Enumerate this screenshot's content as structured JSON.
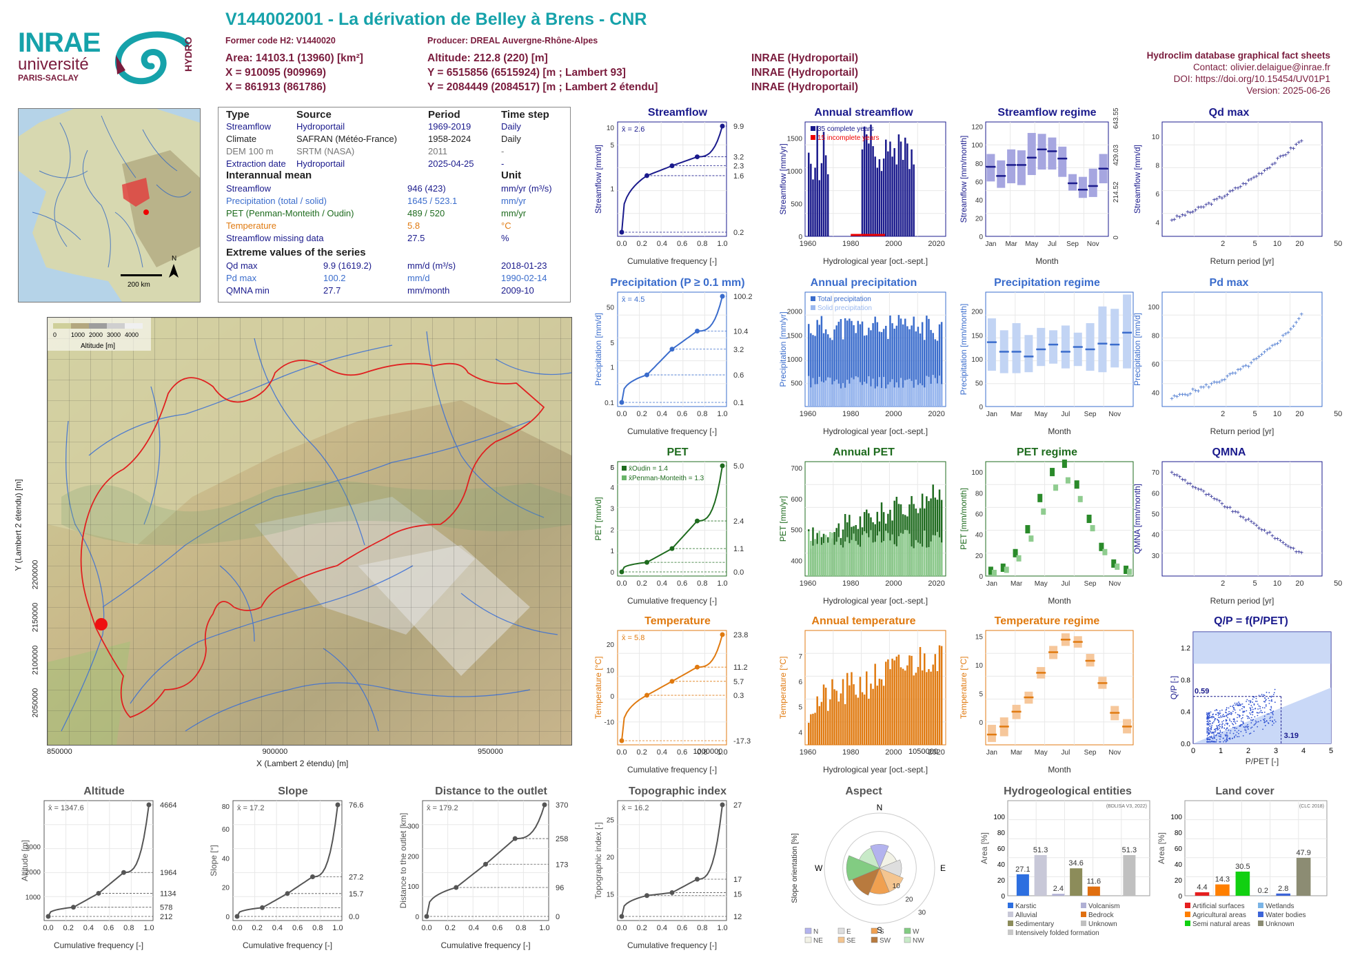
{
  "header": {
    "title": "V144002001 - La dérivation de Belley à Brens - CNR",
    "former_code": "Former code H2: V1440020",
    "producer": "Producer: DREAL Auvergne-Rhône-Alpes",
    "area": "Area: 14103.1 (13960) [km²]",
    "x93": "X = 910095 (909969)",
    "x2e": "X = 861913 (861786)",
    "altitude": "Altitude: 212.8 (220) [m]",
    "y93": "Y = 6515856 (6515924) [m ; Lambert 93]",
    "y2e": "Y = 2084449 (2084517) [m ; Lambert 2 étendu]",
    "src1": "INRAE (Hydroportail)",
    "src2": "INRAE (Hydroportail)",
    "src3": "INRAE (Hydroportail)",
    "fact_title": "Hydroclim database graphical fact sheets",
    "contact": "Contact: olivier.delaigue@inrae.fr",
    "doi": "DOI: https://doi.org/10.15454/UV01P1",
    "version": "Version: 2025-06-26",
    "logo_inrae": "INRAE",
    "logo_univ": "université",
    "logo_paris": "PARIS-SACLAY",
    "logo_hydro": "HYDRO"
  },
  "info": {
    "h_type": "Type",
    "h_source": "Source",
    "h_period": "Period",
    "h_step": "Time step",
    "rows": [
      {
        "type": "Streamflow",
        "source": "Hydroportail",
        "period": "1969-2019",
        "step": "Daily",
        "color": "#1a1a8c"
      },
      {
        "type": "Climate",
        "source": "SAFRAN (Météo-France)",
        "period": "1958-2024",
        "step": "Daily",
        "color": "#222222"
      },
      {
        "type": "DEM 100 m",
        "source": "SRTM (NASA)",
        "period": "2011",
        "step": "-",
        "color": "#777777"
      },
      {
        "type": "Extraction date",
        "source": "Hydroportail",
        "period": "2025-04-25",
        "step": "-",
        "color": "#1a1a8c"
      }
    ],
    "mean_title": "Interannual mean",
    "unit_title": "Unit",
    "means": [
      {
        "label": "Streamflow",
        "value": "946 (423)",
        "unit": "mm/yr (m³/s)",
        "color": "#1a1a8c"
      },
      {
        "label": "Precipitation (total / solid)",
        "value": "1645 / 523.1",
        "unit": "mm/yr",
        "color": "#3a6ccc"
      },
      {
        "label": "PET (Penman-Monteith / Oudin)",
        "value": "489 / 520",
        "unit": "mm/yr",
        "color": "#1e6b1e"
      },
      {
        "label": "Temperature",
        "value": "5.8",
        "unit": "°C",
        "color": "#e07a10"
      },
      {
        "label": "Streamflow missing data",
        "value": "27.5",
        "unit": "%",
        "color": "#1a1a8c"
      }
    ],
    "extreme_title": "Extreme values of the series",
    "extremes": [
      {
        "label": "Qd max",
        "value": "9.9 (1619.2)",
        "unit": "mm/d (m³/s)",
        "date": "2018-01-23",
        "color": "#1a1a8c"
      },
      {
        "label": "Pd max",
        "value": "100.2",
        "unit": "mm/d",
        "date": "1990-02-14",
        "color": "#3a6ccc"
      },
      {
        "label": "QMNA min",
        "value": "27.7",
        "unit": "mm/month",
        "date": "2009-10",
        "color": "#1a1a8c"
      }
    ]
  },
  "map": {
    "france_scale": "200 km",
    "france_north": "N",
    "legend_ticks": [
      "0",
      "1000",
      "2000",
      "3000",
      "4000"
    ],
    "legend_title": "Altitude [m]",
    "xlabel": "X (Lambert 2 étendu) [m]",
    "ylabel": "Y (Lambert 2 étendu) [m]",
    "xticks": [
      "850000",
      "900000",
      "950000",
      "1000000",
      "1050000"
    ],
    "yticks": [
      "2050000",
      "2100000",
      "2150000",
      "2200000"
    ]
  },
  "chart_data": [
    {
      "id": "streamflow_cdf",
      "type": "line",
      "title": "Streamflow",
      "xlabel": "Cumulative frequency [-]",
      "ylabel": "Streamflow [mm/d]",
      "mean_label": "x̄ = 2.6",
      "log": true,
      "ylim": [
        0.15,
        11
      ],
      "x": [
        0,
        0.25,
        0.5,
        0.75,
        1.0
      ],
      "y": [
        0.2,
        1.6,
        2.3,
        3.2,
        9.9
      ],
      "right_ticks": [
        "9.9",
        "3.2",
        "2.3",
        "1.6",
        "0.2"
      ],
      "left_ticks": [
        "10",
        "5",
        "1"
      ]
    },
    {
      "id": "annual_streamflow",
      "type": "bar",
      "title": "Annual streamflow",
      "xlabel": "Hydrological year [oct.-sept.]",
      "ylabel": "Streamflow [mm/yr]",
      "ylim": [
        0,
        1750
      ],
      "legend": [
        "35 complete years",
        "15 incomplete years"
      ],
      "years": [
        1970,
        1971,
        1972,
        1973,
        1974,
        1975,
        1976,
        1977,
        1978,
        1979,
        1980,
        1981,
        1982,
        1983,
        1984,
        1985,
        1986,
        1987,
        1988,
        1989,
        1990,
        1991,
        1992,
        1993,
        1994,
        1995,
        1996,
        1997,
        1998,
        1999,
        2000,
        2001,
        2002,
        2003,
        2004,
        2005,
        2006,
        2007,
        2008,
        2009,
        2010,
        2011,
        2012,
        2013,
        2014,
        2015,
        2016,
        2017,
        2018,
        2019
      ],
      "values": [
        1280,
        1110,
        870,
        1050,
        1690,
        860,
        1120,
        1600,
        1240,
        950,
        0,
        0,
        0,
        0,
        0,
        0,
        0,
        0,
        0,
        0,
        0,
        0,
        0,
        0,
        0,
        1330,
        1680,
        1560,
        1420,
        1710,
        1380,
        1220,
        1050,
        1180,
        1000,
        1190,
        1480,
        1300,
        1450,
        1220,
        1350,
        1100,
        1560,
        1450,
        1170,
        1510,
        1420,
        1030,
        1330,
        1100
      ]
    },
    {
      "id": "streamflow_regime",
      "type": "bar",
      "title": "Streamflow regime",
      "xlabel": "Month",
      "ylabel": "Streamflow [mm/month]",
      "ylim": [
        0,
        125
      ],
      "months": [
        "Jan",
        "Feb",
        "Mar",
        "Apr",
        "May",
        "Jun",
        "Jul",
        "Aug",
        "Sep",
        "Oct",
        "Nov",
        "Dec"
      ],
      "month_labels": [
        "Jan",
        "Mar",
        "May",
        "Jul",
        "Sep",
        "Nov"
      ],
      "median": [
        76,
        66,
        78,
        78,
        86,
        95,
        93,
        85,
        58,
        51,
        55,
        74
      ],
      "low": [
        60,
        53,
        58,
        56,
        67,
        73,
        73,
        65,
        50,
        42,
        43,
        58
      ],
      "high": [
        90,
        83,
        95,
        94,
        113,
        112,
        108,
        98,
        68,
        65,
        74,
        90
      ],
      "right_ticks": [
        "643.55",
        "429.03",
        "214.52",
        "0"
      ]
    },
    {
      "id": "qd_max",
      "type": "scatter",
      "title": "Qd max",
      "xlabel": "Return period [yr]",
      "ylabel": "Streamflow [mm/d]",
      "ylim": [
        3,
        11
      ],
      "xticks": [
        "2",
        "5",
        "10",
        "20",
        "50"
      ]
    },
    {
      "id": "precip_cdf",
      "type": "line",
      "title": "Precipitation (P ≥ 0.1 mm)",
      "xlabel": "Cumulative frequency [-]",
      "ylabel": "Precipitation [mm/d]",
      "mean_label": "x̄ = 4.5",
      "log": true,
      "x": [
        0,
        0.25,
        0.5,
        0.75,
        1.0
      ],
      "y": [
        0.1,
        0.6,
        3.2,
        10.4,
        100.2
      ],
      "right_ticks": [
        "100.2",
        "10.4",
        "3.2",
        "0.6",
        "0.1"
      ],
      "left_ticks": [
        "50",
        "5",
        "1",
        "0.1"
      ]
    },
    {
      "id": "annual_precip",
      "type": "bar",
      "title": "Annual precipitation",
      "xlabel": "Hydrological year [oct.-sept.]",
      "ylabel": "Precipitation [mm/yr]",
      "ylim": [
        0,
        2400
      ],
      "legend": [
        "Total precipitation",
        "Solid precipitation"
      ]
    },
    {
      "id": "precip_regime",
      "type": "bar",
      "title": "Precipitation regime",
      "xlabel": "Month",
      "ylabel": "Precipitation [mm/month]",
      "ylim": [
        0,
        240
      ],
      "median": [
        135,
        115,
        115,
        105,
        120,
        130,
        115,
        125,
        120,
        132,
        130,
        155
      ],
      "low": [
        75,
        70,
        70,
        72,
        85,
        90,
        80,
        85,
        75,
        72,
        82,
        80
      ],
      "high": [
        185,
        160,
        175,
        150,
        165,
        160,
        170,
        155,
        175,
        210,
        205,
        235
      ]
    },
    {
      "id": "pd_max",
      "type": "scatter",
      "title": "Pd max",
      "xlabel": "Return period [yr]",
      "ylabel": "Precipitation [mm/d]",
      "ylim": [
        30,
        110
      ],
      "xticks": [
        "2",
        "5",
        "10",
        "20",
        "50"
      ]
    },
    {
      "id": "pet_cdf",
      "type": "line",
      "title": "PET",
      "xlabel": "Cumulative frequency [-]",
      "ylabel": "PET [mm/d]",
      "legend": [
        "x̄Oudin = 1.4",
        "x̄Penman-Monteith = 1.3"
      ],
      "x": [
        0,
        0.25,
        0.5,
        0.75,
        1.0
      ],
      "y": [
        0.0,
        0.45,
        1.1,
        2.4,
        5.0
      ],
      "right_ticks": [
        "5.0",
        "2.4",
        "1.1",
        "0.0"
      ],
      "left_ticks": [
        "6",
        "5",
        "4",
        "3",
        "2",
        "1",
        "0"
      ]
    },
    {
      "id": "annual_pet",
      "type": "bar",
      "title": "Annual PET",
      "xlabel": "Hydrological year [oct.-sept.]",
      "ylabel": "PET [mm/yr]",
      "ylim": [
        350,
        720
      ]
    },
    {
      "id": "pet_regime",
      "type": "bar",
      "title": "PET regime",
      "xlabel": "Month",
      "ylabel": "PET [mm/month]",
      "ylim": [
        0,
        110
      ],
      "oudin": [
        5,
        8,
        22,
        45,
        75,
        100,
        108,
        88,
        55,
        28,
        12,
        6
      ],
      "pm": [
        3,
        6,
        17,
        36,
        62,
        85,
        92,
        74,
        46,
        23,
        9,
        4
      ]
    },
    {
      "id": "qmna",
      "type": "scatter",
      "title": "QMNA",
      "xlabel": "Return period [yr]",
      "ylabel": "QMNA [mm/month]",
      "ylim": [
        20,
        75
      ],
      "xticks": [
        "2",
        "5",
        "10",
        "20",
        "50"
      ]
    },
    {
      "id": "temp_cdf",
      "type": "line",
      "title": "Temperature",
      "xlabel": "Cumulative frequency [-]",
      "ylabel": "Temperature [°C]",
      "mean_label": "x̄ = 5.8",
      "x": [
        0,
        0.25,
        0.5,
        0.75,
        1.0
      ],
      "y": [
        -17.3,
        0.3,
        5.7,
        11.2,
        23.8
      ],
      "right_ticks": [
        "23.8",
        "11.2",
        "5.7",
        "0.3",
        "-17.3"
      ],
      "left_ticks": [
        "20",
        "10",
        "0",
        "-10"
      ]
    },
    {
      "id": "annual_temp",
      "type": "bar",
      "title": "Annual temperature",
      "xlabel": "Hydrological year [oct.-sept.]",
      "ylabel": "Temperature [°C]",
      "ylim": [
        3.5,
        8
      ]
    },
    {
      "id": "temp_regime",
      "type": "bar",
      "title": "Temperature regime",
      "xlabel": "Month",
      "ylabel": "Temperature [°C]",
      "ylim": [
        -4,
        16
      ],
      "median": [
        -2.2,
        -0.8,
        1.8,
        4.3,
        8.6,
        12.2,
        14.4,
        14.0,
        10.7,
        6.8,
        1.6,
        -0.8
      ],
      "low": [
        -3.5,
        -2.5,
        0.5,
        3.2,
        7.6,
        11.0,
        13.3,
        13.0,
        9.7,
        5.8,
        0.3,
        -2.0
      ],
      "high": [
        -0.5,
        0.8,
        3.0,
        5.3,
        9.6,
        13.3,
        15.5,
        15.0,
        11.9,
        7.9,
        2.8,
        0.5
      ]
    },
    {
      "id": "qp",
      "type": "scatter",
      "title": "Q/P = f(P/PET)",
      "xlabel": "P/PET [-]",
      "ylabel": "Q/P [-]",
      "xlim": [
        0,
        5
      ],
      "ylim": [
        0,
        1.4
      ],
      "point_labels": [
        "0.59",
        "3.19"
      ]
    },
    {
      "id": "altitude",
      "type": "line",
      "title": "Altitude",
      "xlabel": "Cumulative frequency [-]",
      "ylabel": "Altitude [m]",
      "mean_label": "x̄ = 1347.6",
      "x": [
        0,
        0.25,
        0.5,
        0.75,
        1.0
      ],
      "y": [
        212,
        578,
        1134,
        1964,
        4664
      ],
      "right_ticks": [
        "4664",
        "1964",
        "1134",
        "578",
        "212"
      ],
      "left_ticks": [
        "3000",
        "2000",
        "1000"
      ]
    },
    {
      "id": "slope",
      "type": "line",
      "title": "Slope",
      "xlabel": "Cumulative frequency [-]",
      "ylabel": "Slope [°]",
      "mean_label": "x̄ = 17.2",
      "x": [
        0,
        0.25,
        0.5,
        0.75,
        1.0
      ],
      "y": [
        0.0,
        6.0,
        15.7,
        27.2,
        76.6
      ],
      "right_ticks": [
        "76.6",
        "27.2",
        "15.7",
        "0.0"
      ],
      "left_ticks": [
        "80",
        "60",
        "40",
        "20",
        "0"
      ]
    },
    {
      "id": "distance",
      "type": "line",
      "title": "Distance to the outlet",
      "xlabel": "Cumulative frequency [-]",
      "ylabel": "Distance to the outlet [km]",
      "mean_label": "x̄ = 179.2",
      "x": [
        0,
        0.25,
        0.5,
        0.75,
        1.0
      ],
      "y": [
        0,
        96,
        173,
        258,
        370
      ],
      "right_ticks": [
        "370",
        "258",
        "173",
        "96",
        "0"
      ],
      "left_ticks": [
        "300",
        "200",
        "100",
        "0"
      ]
    },
    {
      "id": "topo",
      "type": "line",
      "title": "Topographic index",
      "xlabel": "Cumulative frequency [-]",
      "ylabel": "Topographic index [-]",
      "mean_label": "x̄ = 16.2",
      "x": [
        0,
        0.25,
        0.5,
        0.75,
        1.0
      ],
      "y": [
        12,
        14.8,
        15.2,
        17,
        27
      ],
      "right_ticks": [
        "27",
        "17",
        "15",
        "12"
      ],
      "left_ticks": [
        "25",
        "20",
        "15"
      ]
    },
    {
      "id": "aspect",
      "type": "pie",
      "title": "Aspect",
      "ylabel": "Slope orientation [%]",
      "directions": [
        "N",
        "NE",
        "E",
        "SE",
        "S",
        "SW",
        "W",
        "NW"
      ],
      "values": [
        13,
        10,
        12,
        14,
        14,
        16,
        18,
        12
      ],
      "colors": [
        "#b3b3ee",
        "#f2f2e6",
        "#dedede",
        "#f4c590",
        "#f0a050",
        "#b87a3e",
        "#82cc82",
        "#c8eac8"
      ],
      "ring_labels": [
        "10",
        "20",
        "30"
      ]
    },
    {
      "id": "hydrogeo",
      "type": "bar",
      "title": "Hydrogeological entities",
      "ylabel": "Area [%]",
      "source": "(BDLISA V3, 2022)",
      "categories": [
        "Karstic",
        "Alluvial",
        "Volcanism",
        "Sedimentary",
        "Bedrock",
        "Intensively folded formation",
        "Unknown"
      ],
      "values": [
        27.1,
        51.3,
        2.4,
        34.6,
        11.6,
        0,
        51.3
      ],
      "colors": [
        "#2d6fe0",
        "#c8c8d8",
        "#b0b0d4",
        "#8c8c5a",
        "#e06f10",
        "#c8c8c8",
        "#c0c0c0"
      ]
    },
    {
      "id": "landcover",
      "type": "bar",
      "title": "Land cover",
      "ylabel": "Area [%]",
      "source": "(CLC 2018)",
      "categories": [
        "Artificial surfaces",
        "Agricultural areas",
        "Semi natural areas",
        "Wetlands",
        "Water bodies",
        "Unknown"
      ],
      "values": [
        4.4,
        14.3,
        30.5,
        0.2,
        2.8,
        47.9
      ],
      "colors": [
        "#e51f1f",
        "#ff7f00",
        "#11d011",
        "#7ab4e6",
        "#3c64d8",
        "#8c8c73"
      ]
    }
  ],
  "bottom": {
    "hydro_legend": [
      "Karstic",
      "Volcanism",
      "Alluvial",
      "Bedrock",
      "Sedimentary",
      "Unknown",
      "Intensively folded formation"
    ],
    "land_legend": [
      "Artificial surfaces",
      "Wetlands",
      "Agricultural areas",
      "Water bodies",
      "Semi natural areas",
      "Unknown"
    ],
    "aspect_legend": [
      "N",
      "E",
      "S",
      "W",
      "NE",
      "SE",
      "SW",
      "NW"
    ],
    "cardinals": [
      "N",
      "E",
      "S",
      "W"
    ]
  }
}
